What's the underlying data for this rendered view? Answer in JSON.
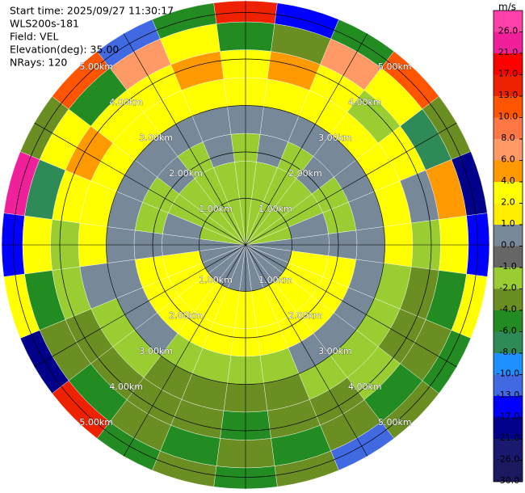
{
  "chart_data": {
    "type": "ppi",
    "header": [
      "Start time: 2025/09/27 11:30:17",
      "WLS200s-181",
      "Field: VEL",
      "Elevation(deg): 35.00",
      "NRays: 120"
    ],
    "unit": "m/s",
    "azimuths": [
      0,
      15,
      30,
      45,
      60,
      75,
      90,
      105,
      120,
      135,
      150,
      165,
      180,
      195,
      210,
      225,
      240,
      255,
      270,
      285,
      300,
      315,
      330,
      345
    ],
    "gates_km": [
      0,
      1,
      1.8,
      2.4,
      3,
      3.6,
      4.2,
      4.8,
      5.25
    ],
    "values": [
      [
        -1.5,
        -1.5,
        -1.5,
        0.5,
        3,
        3,
        -5,
        14
      ],
      [
        -1.5,
        -1.5,
        0.5,
        0.5,
        3,
        5,
        -3,
        -15
      ],
      [
        -1.5,
        -1.5,
        -1.5,
        0.5,
        3,
        3,
        7,
        -5
      ],
      [
        -1.5,
        -1.5,
        0.5,
        0.5,
        3,
        -1.5,
        3,
        11
      ],
      [
        -1.5,
        -1.5,
        -1.5,
        0.5,
        3,
        3,
        -7,
        -3
      ],
      [
        -1.5,
        0.5,
        -1.5,
        0.5,
        3,
        0.5,
        5,
        -19
      ],
      [
        0.5,
        0.5,
        0.5,
        0.5,
        3,
        -1.5,
        3,
        -15
      ],
      [
        0.5,
        3,
        3,
        0.5,
        -1.5,
        -3,
        -5,
        3
      ],
      [
        0.5,
        3,
        3,
        0.5,
        -1.5,
        -3,
        -3,
        -5
      ],
      [
        0.5,
        3,
        3,
        0.5,
        -1.5,
        -1.5,
        -5,
        -3
      ],
      [
        0.5,
        3,
        3,
        0.5,
        -1.5,
        -3,
        -3,
        -11
      ],
      [
        0.5,
        3,
        3,
        -1.5,
        -3,
        -3,
        -5,
        -3
      ],
      [
        0.5,
        3,
        3,
        -1.5,
        -3,
        -5,
        -3,
        -5
      ],
      [
        0.5,
        3,
        3,
        -1.5,
        -3,
        -3,
        -5,
        -3
      ],
      [
        0.5,
        3,
        3,
        -1.5,
        -3,
        -3,
        -3,
        -5
      ],
      [
        0.5,
        3,
        3,
        0.5,
        -1.5,
        -3,
        -5,
        15
      ],
      [
        0.5,
        3,
        3,
        0.5,
        -1.5,
        -3,
        -3,
        -19
      ],
      [
        0.5,
        3,
        3,
        0.5,
        0.5,
        -1.5,
        -5,
        3
      ],
      [
        0.5,
        0.5,
        0.5,
        0.5,
        3,
        -1.5,
        3,
        -15
      ],
      [
        -1.5,
        0.5,
        -1.5,
        0.5,
        3,
        3,
        -7,
        22
      ],
      [
        -1.5,
        -1.5,
        -1.5,
        0.5,
        3,
        5,
        3,
        -3
      ],
      [
        -1.5,
        -1.5,
        0.5,
        0.5,
        3,
        3,
        -5,
        11
      ],
      [
        -1.5,
        -1.5,
        -1.5,
        0.5,
        3,
        3,
        7,
        -11
      ],
      [
        -1.5,
        -1.5,
        0.5,
        0.5,
        3,
        5,
        3,
        -5
      ]
    ],
    "range_rings": [
      {
        "value": 1,
        "label": "1.00km"
      },
      {
        "value": 2,
        "label": "2.00km"
      },
      {
        "value": 3,
        "label": "3.00km"
      },
      {
        "value": 4,
        "label": "4.00km"
      },
      {
        "value": 5,
        "label": "5.00km"
      }
    ],
    "clim": [
      -30,
      30
    ],
    "cticks": [
      {
        "value": 26,
        "label": "26.0"
      },
      {
        "value": 21,
        "label": "21.0"
      },
      {
        "value": 17,
        "label": "17.0"
      },
      {
        "value": 13,
        "label": "13.0"
      },
      {
        "value": 10,
        "label": "10.0"
      },
      {
        "value": 8,
        "label": "8.0"
      },
      {
        "value": 6,
        "label": "6.0"
      },
      {
        "value": 4,
        "label": "4.0"
      },
      {
        "value": 2,
        "label": "2.0"
      },
      {
        "value": 1,
        "label": "1.0"
      },
      {
        "value": 0,
        "label": "0.0"
      },
      {
        "value": -1,
        "label": "-1.0"
      },
      {
        "value": -2,
        "label": "-2.0"
      },
      {
        "value": -4,
        "label": "-4.0"
      },
      {
        "value": -6,
        "label": "-6.0"
      },
      {
        "value": -8,
        "label": "-8.0"
      },
      {
        "value": -10,
        "label": "-10.0"
      },
      {
        "value": -13,
        "label": "-13.0"
      },
      {
        "value": -17,
        "label": "-17.0"
      },
      {
        "value": -21,
        "label": "-21.0"
      },
      {
        "value": -26,
        "label": "-26.0"
      },
      {
        "value": -30,
        "label": "-30.0"
      }
    ],
    "colors": [
      "#ff40a8",
      "#f0209b",
      "#ff0000",
      "#ee2200",
      "#ff5500",
      "#ff7744",
      "#ff9966",
      "#ff9900",
      "#ffff00",
      "#ffee00",
      "#778899",
      "#666666",
      "#9acd32",
      "#6b8e23",
      "#228b22",
      "#2e8b57",
      "#1e90ff",
      "#4169e1",
      "#0000ff",
      "#00008b",
      "#191970",
      "#1a1a60"
    ]
  }
}
